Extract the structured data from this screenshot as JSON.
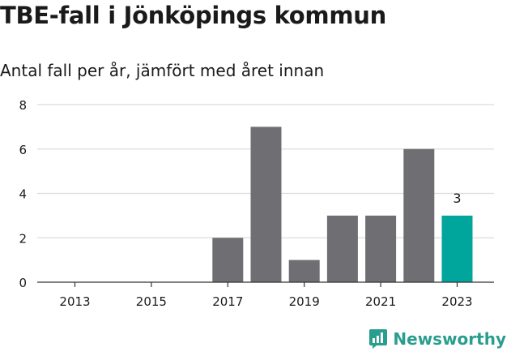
{
  "title": "TBE-fall i Jönköpings kommun",
  "subtitle": "Antal fall per år, jämfört med året innan",
  "brand": "Newsworthy",
  "colors": {
    "bar": "#6f6e73",
    "highlight": "#00a69c",
    "grid": "#dcdcdc",
    "axis": "#333333",
    "text": "#1a1a1a",
    "brand": "#2a9e8e"
  },
  "chart_data": {
    "type": "bar",
    "categories": [
      "2013",
      "2014",
      "2015",
      "2016",
      "2017",
      "2018",
      "2019",
      "2020",
      "2021",
      "2022",
      "2023"
    ],
    "values": [
      0,
      0,
      0,
      0,
      2,
      7,
      1,
      3,
      3,
      6,
      3
    ],
    "x_tick_labels": [
      "2013",
      "2015",
      "2017",
      "2019",
      "2021",
      "2023"
    ],
    "y_ticks": [
      0,
      2,
      4,
      6,
      8
    ],
    "ylim": [
      0,
      8
    ],
    "highlight_index": 10,
    "annotations": [
      {
        "category": "2023",
        "label": "3"
      }
    ],
    "grid": true,
    "legend": "none"
  }
}
